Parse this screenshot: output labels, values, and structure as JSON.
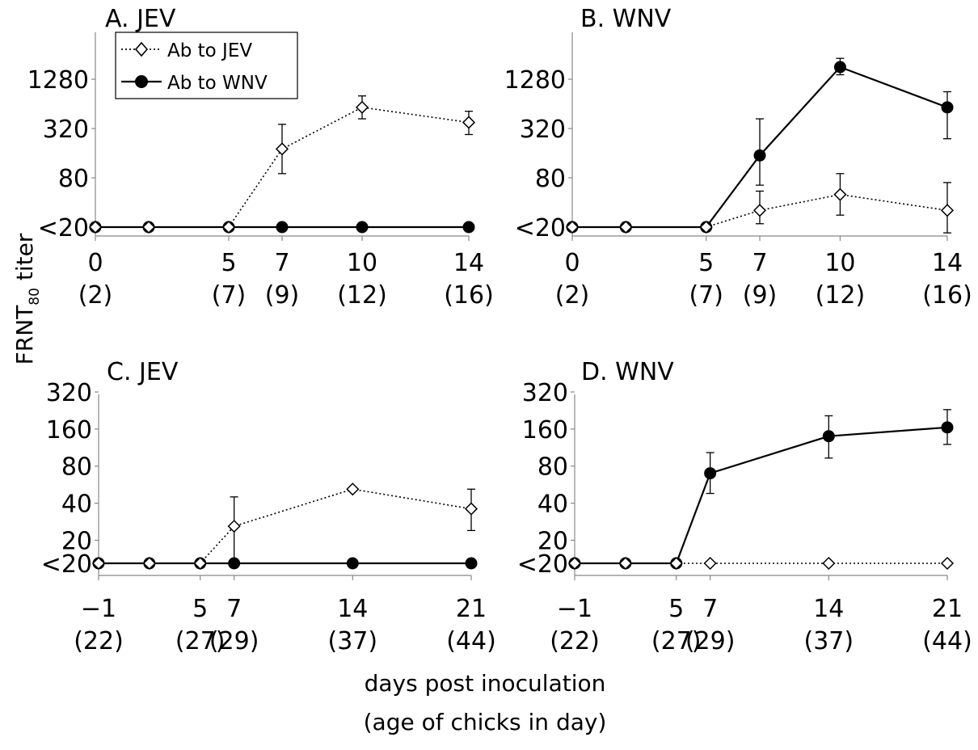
{
  "figure": {
    "ylabel": "FRNT",
    "ylabel_sub": "80",
    "ylabel_suffix": " titer",
    "xlabel_line1": "days post inoculation",
    "xlabel_line2": "(age of  chicks in day)",
    "legend": [
      {
        "label": "Ab to JEV",
        "marker": "open-diamond",
        "line": "dotted"
      },
      {
        "label": "Ab to WNV",
        "marker": "filled-circle",
        "line": "solid"
      }
    ]
  },
  "chart_data": [
    {
      "type": "line",
      "title": "A. JEV",
      "y_scale": "log2",
      "ylim": [
        20,
        2560
      ],
      "y_ticks": [
        20,
        80,
        320,
        1280
      ],
      "y_tick_labels": [
        "<20",
        "80",
        "320",
        "1280"
      ],
      "x_ticks": [
        {
          "x": 0,
          "day": "0",
          "age": "(2)"
        },
        {
          "x": 5,
          "day": "5",
          "age": "(7)"
        },
        {
          "x": 7,
          "day": "7",
          "age": "(9)"
        },
        {
          "x": 10,
          "day": "10",
          "age": "(12)"
        },
        {
          "x": 14,
          "day": "14",
          "age": "(16)"
        }
      ],
      "x": [
        0,
        2,
        5,
        7,
        10,
        14
      ],
      "series": [
        {
          "name": "Ab to JEV",
          "values": [
            20,
            20,
            20,
            180,
            580,
            380
          ],
          "err_low": [
            0,
            0,
            0,
            90,
            420,
            270
          ],
          "err_high": [
            0,
            0,
            0,
            360,
            800,
            520
          ]
        },
        {
          "name": "Ab to WNV",
          "values": [
            20,
            20,
            20,
            20,
            20,
            20
          ],
          "err_low": [
            0,
            0,
            0,
            0,
            0,
            0
          ],
          "err_high": [
            0,
            0,
            0,
            0,
            0,
            0
          ]
        }
      ]
    },
    {
      "type": "line",
      "title": "B. WNV",
      "y_scale": "log2",
      "ylim": [
        20,
        2560
      ],
      "y_ticks": [
        20,
        80,
        320,
        1280
      ],
      "y_tick_labels": [
        "<20",
        "80",
        "320",
        "1280"
      ],
      "x_ticks": [
        {
          "x": 0,
          "day": "0",
          "age": "(2)"
        },
        {
          "x": 5,
          "day": "5",
          "age": "(7)"
        },
        {
          "x": 7,
          "day": "7",
          "age": "(9)"
        },
        {
          "x": 10,
          "day": "10",
          "age": "(12)"
        },
        {
          "x": 14,
          "day": "14",
          "age": "(16)"
        }
      ],
      "x": [
        0,
        2,
        5,
        7,
        10,
        14
      ],
      "series": [
        {
          "name": "Ab to JEV",
          "values": [
            20,
            20,
            20,
            32,
            50,
            32
          ],
          "err_low": [
            0,
            0,
            0,
            22,
            28,
            17
          ],
          "err_high": [
            0,
            0,
            0,
            55,
            90,
            70
          ]
        },
        {
          "name": "Ab to WNV",
          "values": [
            20,
            20,
            20,
            150,
            1800,
            580
          ],
          "err_low": [
            0,
            0,
            0,
            65,
            1450,
            240
          ],
          "err_high": [
            0,
            0,
            0,
            420,
            2300,
            900
          ]
        }
      ]
    },
    {
      "type": "line",
      "title": "C. JEV",
      "y_scale": "log2",
      "ylim": [
        13,
        320
      ],
      "y_ticks": [
        13,
        20,
        40,
        80,
        160,
        320
      ],
      "y_tick_labels": [
        "<20",
        "20",
        "40",
        "80",
        "160",
        "320"
      ],
      "x_ticks": [
        {
          "x": -1,
          "day": "−1",
          "age": "(22)"
        },
        {
          "x": 5,
          "day": "5",
          "age": "(27)"
        },
        {
          "x": 7,
          "day": "7",
          "age": "(29)"
        },
        {
          "x": 14,
          "day": "14",
          "age": "(37)"
        },
        {
          "x": 21,
          "day": "21",
          "age": "(44)"
        }
      ],
      "x": [
        -1,
        2,
        5,
        7,
        14,
        21
      ],
      "series": [
        {
          "name": "Ab to JEV",
          "values": [
            13,
            13,
            13,
            26,
            52,
            36
          ],
          "err_low": [
            0,
            0,
            0,
            13,
            52,
            24
          ],
          "err_high": [
            0,
            0,
            0,
            45,
            52,
            52
          ]
        },
        {
          "name": "Ab to WNV",
          "values": [
            13,
            13,
            13,
            13,
            13,
            13
          ],
          "err_low": [
            0,
            0,
            0,
            0,
            0,
            0
          ],
          "err_high": [
            0,
            0,
            0,
            0,
            0,
            0
          ]
        }
      ]
    },
    {
      "type": "line",
      "title": "D. WNV",
      "y_scale": "log2",
      "ylim": [
        13,
        320
      ],
      "y_ticks": [
        13,
        20,
        40,
        80,
        160,
        320
      ],
      "y_tick_labels": [
        "<20",
        "20",
        "40",
        "80",
        "160",
        "320"
      ],
      "x_ticks": [
        {
          "x": -1,
          "day": "−1",
          "age": "(22)"
        },
        {
          "x": 5,
          "day": "5",
          "age": "(27)"
        },
        {
          "x": 7,
          "day": "7",
          "age": "(29)"
        },
        {
          "x": 14,
          "day": "14",
          "age": "(37)"
        },
        {
          "x": 21,
          "day": "21",
          "age": "(44)"
        }
      ],
      "x": [
        -1,
        2,
        5,
        7,
        14,
        21
      ],
      "series": [
        {
          "name": "Ab to JEV",
          "values": [
            13,
            13,
            13,
            13,
            13,
            13
          ],
          "err_low": [
            0,
            0,
            0,
            0,
            0,
            0
          ],
          "err_high": [
            0,
            0,
            0,
            0,
            0,
            0
          ]
        },
        {
          "name": "Ab to WNV",
          "values": [
            13,
            13,
            13,
            70,
            140,
            165
          ],
          "err_low": [
            0,
            0,
            0,
            48,
            93,
            120
          ],
          "err_high": [
            0,
            0,
            0,
            103,
            205,
            230
          ]
        }
      ]
    }
  ]
}
